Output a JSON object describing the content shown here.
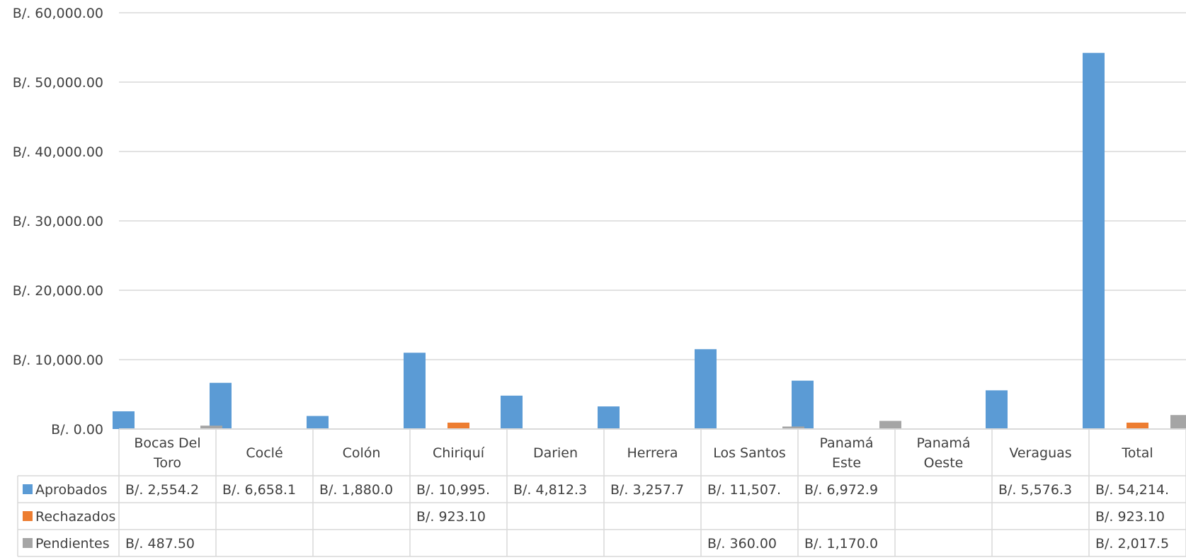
{
  "chart_data": {
    "type": "bar",
    "categories": [
      "Bocas Del Toro",
      "Coclé",
      "Colón",
      "Chiriquí",
      "Darien",
      "Herrera",
      "Los Santos",
      "Panamá Este",
      "Panamá Oeste",
      "Veraguas",
      "Total"
    ],
    "category_lines": [
      [
        "Bocas Del",
        "Toro"
      ],
      [
        "Coclé"
      ],
      [
        "Colón"
      ],
      [
        "Chiriquí"
      ],
      [
        "Darien"
      ],
      [
        "Herrera"
      ],
      [
        "Los Santos"
      ],
      [
        "Panamá",
        "Este"
      ],
      [
        "Panamá",
        "Oeste"
      ],
      [
        "Veraguas"
      ],
      [
        "Total"
      ]
    ],
    "series": [
      {
        "name": "Aprobados",
        "color": "#5b9bd5",
        "values": [
          2554.2,
          6658.1,
          1880.0,
          10995,
          4812.3,
          3257.7,
          11507,
          6972.9,
          null,
          5576.3,
          54214
        ],
        "table_labels": [
          "B/. 2,554.2",
          "B/. 6,658.1",
          "B/. 1,880.0",
          "B/. 10,995.",
          "B/. 4,812.3",
          "B/. 3,257.7",
          "B/. 11,507.",
          "B/. 6,972.9",
          "",
          "B/. 5,576.3",
          "B/. 54,214."
        ]
      },
      {
        "name": "Rechazados",
        "color": "#ed7d31",
        "values": [
          null,
          null,
          null,
          923.1,
          null,
          null,
          null,
          null,
          null,
          null,
          923.1
        ],
        "table_labels": [
          "",
          "",
          "",
          "B/. 923.10",
          "",
          "",
          "",
          "",
          "",
          "",
          "B/. 923.10"
        ]
      },
      {
        "name": "Pendientes",
        "color": "#a5a5a5",
        "values": [
          487.5,
          null,
          null,
          null,
          null,
          null,
          360.0,
          1170.0,
          null,
          null,
          2017.5
        ],
        "table_labels": [
          "B/. 487.50",
          "",
          "",
          "",
          "",
          "",
          "B/. 360.00",
          "B/. 1,170.0",
          "",
          "",
          "B/. 2,017.5"
        ]
      }
    ],
    "yticks": [
      "B/. 0.00",
      "B/. 10,000.00",
      "B/. 20,000.00",
      "B/. 30,000.00",
      "B/. 40,000.00",
      "B/. 50,000.00",
      "B/. 60,000.00"
    ],
    "ylim": [
      0,
      60000
    ],
    "grid": true,
    "legend": "data-table"
  }
}
